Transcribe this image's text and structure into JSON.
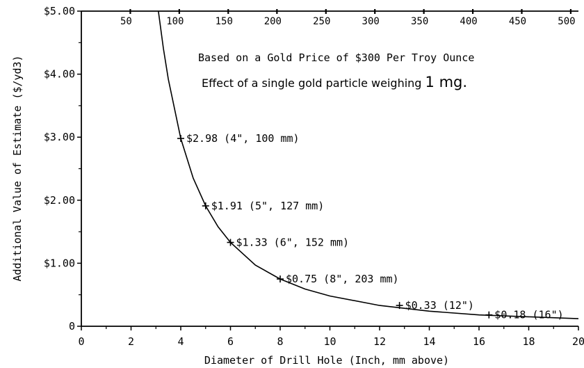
{
  "chart_data": {
    "type": "line",
    "xlabel": "Diameter of Drill Hole (Inch, mm above)",
    "ylabel": "Additional Value of Estimate ($/yd3)",
    "xlim": [
      0,
      20
    ],
    "ylim": [
      0,
      5
    ],
    "x_ticks": [
      "0",
      "2",
      "4",
      "6",
      "8",
      "10",
      "12",
      "14",
      "16",
      "18",
      "20"
    ],
    "x_tick_values": [
      0,
      2,
      4,
      6,
      8,
      10,
      12,
      14,
      16,
      18,
      20
    ],
    "top_ticks": [
      "50",
      "100",
      "150",
      "200",
      "250",
      "300",
      "350",
      "400",
      "450",
      "500"
    ],
    "top_tick_values": [
      1.97,
      3.94,
      5.91,
      7.87,
      9.84,
      11.81,
      13.78,
      15.75,
      17.72,
      19.69
    ],
    "y_ticks": [
      "0",
      "$1.00",
      "$2.00",
      "$3.00",
      "$4.00",
      "$5.00"
    ],
    "y_tick_values": [
      0,
      1,
      2,
      3,
      4,
      5
    ],
    "annotation_lines": [
      "Based on a Gold Price of $300 Per Troy Ounce",
      "Effect of a single gold particle weighing ",
      "1 mg."
    ],
    "grid": false,
    "series": [
      {
        "x": [
          3.1,
          3.3,
          3.5,
          4,
          4.5,
          5,
          5.5,
          6,
          7,
          8,
          9,
          10,
          12,
          14,
          16,
          18,
          20
        ],
        "y": [
          5.0,
          4.41,
          3.92,
          2.98,
          2.35,
          1.91,
          1.58,
          1.33,
          0.97,
          0.75,
          0.59,
          0.48,
          0.33,
          0.24,
          0.18,
          0.15,
          0.12
        ]
      }
    ],
    "data_labels": [
      {
        "x": 4,
        "y": 2.98,
        "text": "$2.98 (4\", 100 mm)"
      },
      {
        "x": 5,
        "y": 1.91,
        "text": "$1.91 (5\", 127 mm)"
      },
      {
        "x": 6,
        "y": 1.33,
        "text": "$1.33 (6\", 152 mm)"
      },
      {
        "x": 8,
        "y": 0.75,
        "text": "$0.75 (8\", 203 mm)"
      },
      {
        "x": 12.8,
        "y": 0.33,
        "text": "$0.33 (12\")"
      },
      {
        "x": 16.4,
        "y": 0.18,
        "text": "$0.18 (16\")"
      }
    ]
  }
}
